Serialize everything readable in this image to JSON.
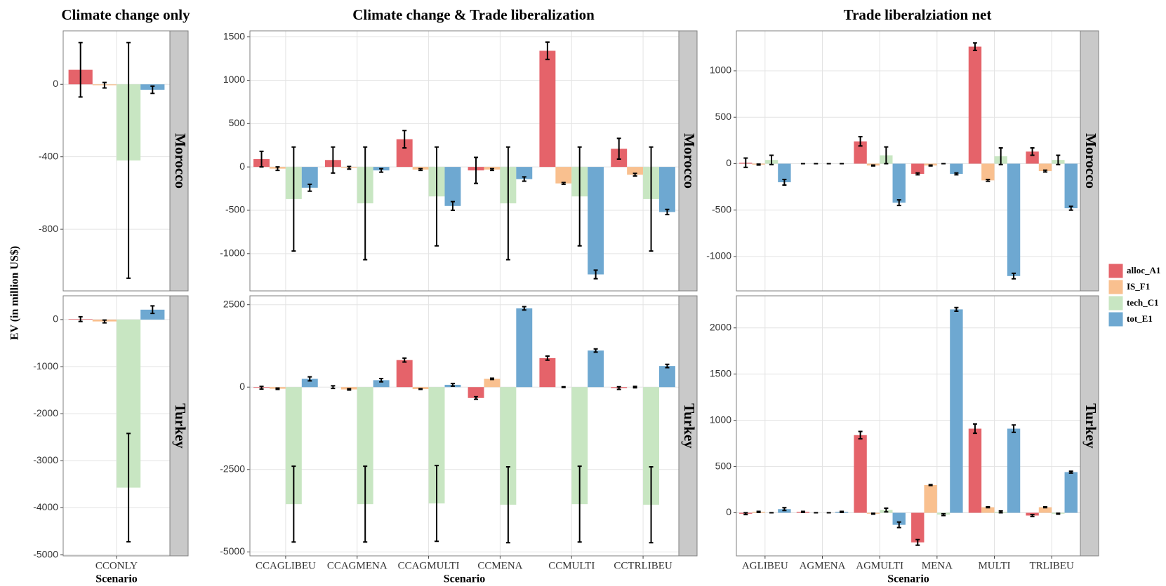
{
  "chart_data": {
    "type": "bar",
    "ylabel": "EV (in million US$)",
    "series": [
      {
        "name": "alloc_A1",
        "color": "#e5636a"
      },
      {
        "name": "IS_F1",
        "color": "#f9c08f"
      },
      {
        "name": "tech_C1",
        "color": "#c8e6c2"
      },
      {
        "name": "tot_E1",
        "color": "#6ea8d1"
      }
    ],
    "columns": [
      {
        "title": "Climate change only",
        "xlabel": "Scenario",
        "categories": [
          "CCONLY"
        ],
        "panels": [
          {
            "facet": "Morocco",
            "ylim": [
              -1140,
              295
            ],
            "yticks": [
              -800,
              -400,
              0
            ],
            "series": [
              {
                "values": [
                  80
                ],
                "errors": [
                  150
                ]
              },
              {
                "values": [
                  -5
                ],
                "errors": [
                  15
                ]
              },
              {
                "values": [
                  -420
                ],
                "errors": [
                  650
                ]
              },
              {
                "values": [
                  -30
                ],
                "errors": [
                  20
                ]
              }
            ]
          },
          {
            "facet": "Turkey",
            "ylim": [
              -5020,
              505
            ],
            "yticks": [
              -5000,
              -4000,
              -3000,
              -2000,
              -1000,
              0
            ],
            "series": [
              {
                "values": [
                  10
                ],
                "errors": [
                  50
                ]
              },
              {
                "values": [
                  -40
                ],
                "errors": [
                  30
                ]
              },
              {
                "values": [
                  -3570
                ],
                "errors": [
                  1150
                ]
              },
              {
                "values": [
                  210
                ],
                "errors": [
                  80
                ]
              }
            ]
          }
        ]
      },
      {
        "title": "Climate change & Trade liberalization",
        "xlabel": "Scenario",
        "categories": [
          "CCAGLIBEU",
          "CCAGMENA",
          "CCAGMULTI",
          "CCMENA",
          "CCMULTI",
          "CCTRLIBEU"
        ],
        "panels": [
          {
            "facet": "Morocco",
            "ylim": [
              -1430,
              1570
            ],
            "yticks": [
              -1000,
              -500,
              0,
              500,
              1000,
              1500
            ],
            "series": [
              {
                "values": [
                  90,
                  80,
                  320,
                  -40,
                  1340,
                  210
                ],
                "errors": [
                  90,
                  150,
                  100,
                  150,
                  100,
                  120
                ]
              },
              {
                "values": [
                  -20,
                  -10,
                  -30,
                  -30,
                  -190,
                  -90
                ],
                "errors": [
                  20,
                  15,
                  10,
                  10,
                  10,
                  15
                ]
              },
              {
                "values": [
                  -370,
                  -420,
                  -340,
                  -420,
                  -340,
                  -370
                ],
                "errors": [
                  600,
                  650,
                  570,
                  650,
                  570,
                  600
                ]
              },
              {
                "values": [
                  -240,
                  -40,
                  -450,
                  -140,
                  -1240,
                  -520
                ],
                "errors": [
                  40,
                  20,
                  50,
                  25,
                  50,
                  30
                ]
              }
            ]
          },
          {
            "facet": "Turkey",
            "ylim": [
              -5120,
              2770
            ],
            "yticks": [
              -5000,
              -2500,
              0,
              2500
            ],
            "series": [
              {
                "values": [
                  -20,
                  0,
                  820,
                  -330,
                  880,
                  -30
                ],
                "errors": [
                  40,
                  40,
                  60,
                  40,
                  60,
                  40
                ]
              },
              {
                "values": [
                  -50,
                  -70,
                  -60,
                  250,
                  0,
                  0
                ],
                "errors": [
                  20,
                  20,
                  10,
                  20,
                  10,
                  20
                ]
              },
              {
                "values": [
                  -3550,
                  -3550,
                  -3530,
                  -3570,
                  -3550,
                  -3570
                ],
                "errors": [
                  1150,
                  1150,
                  1150,
                  1150,
                  1150,
                  1150
                ]
              },
              {
                "values": [
                  250,
                  210,
                  70,
                  2390,
                  1110,
                  640
                ],
                "errors": [
                  60,
                  50,
                  40,
                  50,
                  50,
                  50
                ]
              }
            ]
          }
        ]
      },
      {
        "title": "Trade liberalziation net",
        "xlabel": "Scenario",
        "categories": [
          "AGLIBEU",
          "AGMENA",
          "AGMULTI",
          "MENA",
          "MULTI",
          "TRLIBEU"
        ],
        "panels": [
          {
            "facet": "Morocco",
            "ylim": [
              -1370,
              1430
            ],
            "yticks": [
              -1000,
              -500,
              0,
              500,
              1000
            ],
            "series": [
              {
                "values": [
                  10,
                  0,
                  240,
                  -110,
                  1260,
                  130
                ],
                "errors": [
                  50,
                  0,
                  50,
                  10,
                  40,
                  40
                ]
              },
              {
                "values": [
                  -10,
                  0,
                  -20,
                  -20,
                  -180,
                  -80
                ],
                "errors": [
                  5,
                  0,
                  5,
                  5,
                  10,
                  10
                ]
              },
              {
                "values": [
                  40,
                  0,
                  90,
                  0,
                  80,
                  40
                ],
                "errors": [
                  50,
                  0,
                  90,
                  0,
                  90,
                  50
                ]
              },
              {
                "values": [
                  -200,
                  0,
                  -420,
                  -110,
                  -1210,
                  -480
                ],
                "errors": [
                  30,
                  0,
                  30,
                  10,
                  30,
                  20
                ]
              }
            ]
          },
          {
            "facet": "Turkey",
            "ylim": [
              -466,
              2347
            ],
            "yticks": [
              0,
              500,
              1000,
              1500,
              2000
            ],
            "series": [
              {
                "values": [
                  -10,
                  10,
                  840,
                  -320,
                  910,
                  -30
                ],
                "errors": [
                  10,
                  5,
                  40,
                  30,
                  50,
                  10
                ]
              },
              {
                "values": [
                  10,
                  0,
                  -10,
                  300,
                  60,
                  60
                ],
                "errors": [
                  5,
                  0,
                  5,
                  5,
                  5,
                  5
                ]
              },
              {
                "values": [
                  0,
                  0,
                  30,
                  -20,
                  10,
                  -10
                ],
                "errors": [
                  0,
                  0,
                  20,
                  10,
                  10,
                  5
                ]
              },
              {
                "values": [
                  40,
                  10,
                  -130,
                  2200,
                  910,
                  440
                ],
                "errors": [
                  15,
                  5,
                  30,
                  20,
                  40,
                  10
                ]
              }
            ]
          }
        ]
      }
    ]
  }
}
